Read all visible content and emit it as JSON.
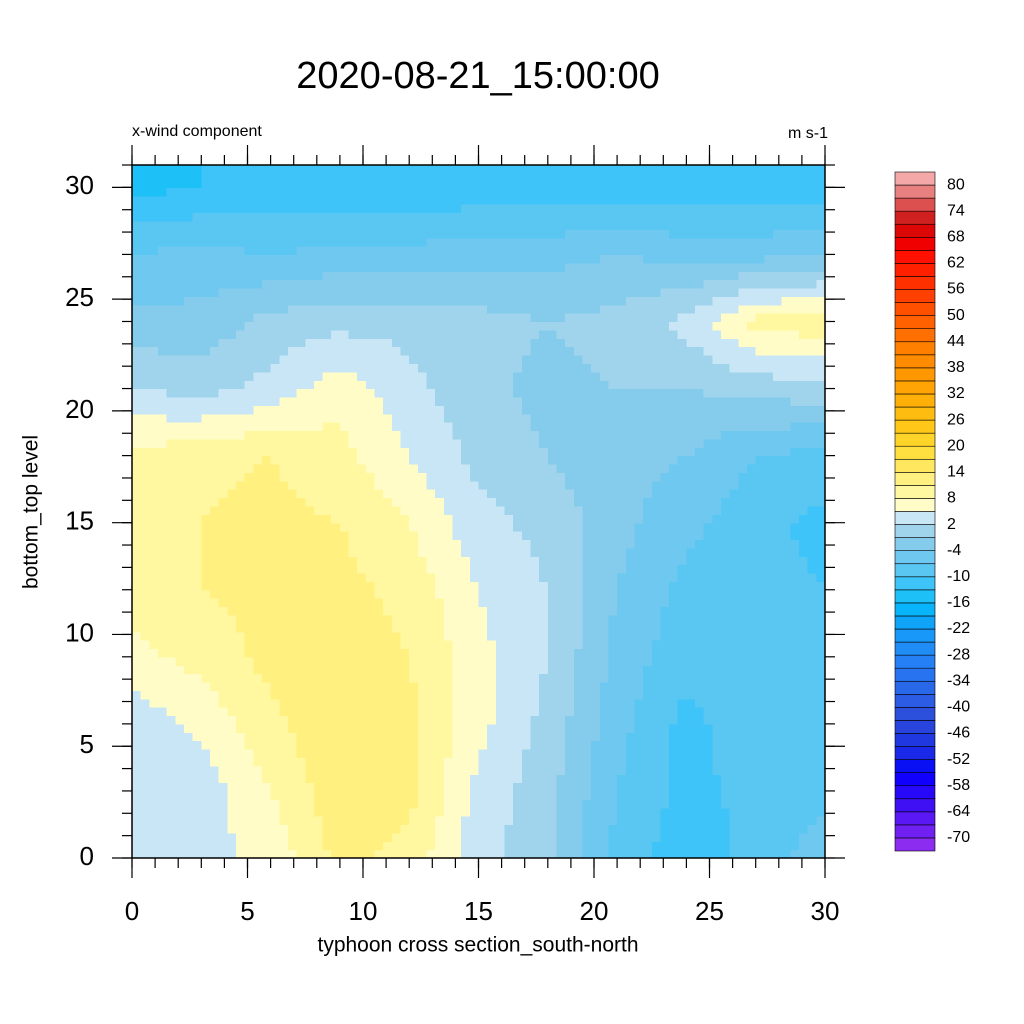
{
  "chart_data": {
    "type": "contour",
    "title": "2020-08-21_15:00:00",
    "subtitle_left": "x-wind component",
    "subtitle_right": "m s-1",
    "x_label": "typhoon cross section_south-north",
    "y_label": "bottom_top level",
    "x": [
      0,
      3,
      6,
      9,
      12,
      15,
      18,
      21,
      24,
      27,
      30
    ],
    "y": [
      0,
      3,
      6,
      9,
      12,
      15,
      18,
      21,
      24,
      27,
      30
    ],
    "z": [
      [
        3,
        4,
        6,
        12,
        10,
        3,
        0,
        -8,
        -12,
        -9,
        -5
      ],
      [
        2,
        3,
        8,
        13,
        12,
        4,
        0,
        -7,
        -11,
        -9,
        -8
      ],
      [
        3,
        6,
        10,
        14,
        12,
        6,
        1,
        -6,
        -11,
        -8,
        -8
      ],
      [
        7,
        9,
        12,
        13,
        11,
        6,
        2,
        -5,
        -9,
        -8,
        -8
      ],
      [
        9,
        11,
        12,
        12,
        10,
        5,
        2,
        -4,
        -8,
        -9,
        -10
      ],
      [
        10,
        11,
        12,
        11,
        8,
        3,
        1,
        -3,
        -6,
        -9,
        -11
      ],
      [
        9,
        10,
        11,
        9,
        5,
        1,
        -1,
        -3,
        -4,
        -7,
        -8
      ],
      [
        2,
        1,
        3,
        7,
        3,
        0,
        -2,
        -1,
        -1,
        0,
        1
      ],
      [
        -3,
        -3,
        0,
        1,
        1,
        0,
        -1,
        0,
        3,
        9,
        10
      ],
      [
        -7,
        -6,
        -7,
        -6,
        -6,
        -5,
        -5,
        -4,
        -5,
        -5,
        -4
      ],
      [
        -14,
        -13,
        -12,
        -12,
        -13,
        -12,
        -12,
        -12,
        -12,
        -12,
        -12
      ]
    ],
    "xlim": [
      0,
      30
    ],
    "ylim": [
      0,
      31
    ],
    "xticks": [
      0,
      5,
      10,
      15,
      20,
      25,
      30
    ],
    "yticks": [
      0,
      5,
      10,
      15,
      20,
      25,
      30
    ],
    "minor_step": 1,
    "levels": [
      -70,
      -67,
      -64,
      -61,
      -58,
      -55,
      -52,
      -49,
      -46,
      -43,
      -40,
      -37,
      -34,
      -31,
      -28,
      -25,
      -22,
      -19,
      -16,
      -13,
      -10,
      -7,
      -4,
      -1,
      2,
      5,
      8,
      11,
      14,
      17,
      20,
      23,
      26,
      29,
      32,
      35,
      38,
      41,
      44,
      47,
      50,
      53,
      56,
      59,
      62,
      65,
      68,
      71,
      74,
      77,
      80
    ],
    "colorbar_ticks": [
      -70,
      -64,
      -58,
      -52,
      -46,
      -40,
      -34,
      -28,
      -22,
      -16,
      -10,
      -4,
      2,
      8,
      14,
      20,
      26,
      32,
      38,
      44,
      50,
      56,
      62,
      68,
      74,
      80
    ],
    "colors": [
      "#8c2cf0",
      "#7020f0",
      "#5a18f4",
      "#4010f4",
      "#2808f8",
      "#1000fc",
      "#0a10f4",
      "#1a28e8",
      "#2038e0",
      "#2844dc",
      "#2c50dc",
      "#2c5ce4",
      "#2a68ea",
      "#2874f0",
      "#2480f4",
      "#208cf6",
      "#1898f8",
      "#10a4f8",
      "#08b4fa",
      "#1ec0f8",
      "#3ec4f8",
      "#5ac6f2",
      "#6ec8f0",
      "#84cbec",
      "#a0d4ec",
      "#c8e6f5",
      "#fffcc8",
      "#fff8a0",
      "#fff080",
      "#ffe860",
      "#ffe040",
      "#ffd428",
      "#ffc818",
      "#ffbc10",
      "#ffb008",
      "#ffa404",
      "#ff9800",
      "#ff8c00",
      "#ff8000",
      "#ff7000",
      "#ff6000",
      "#ff5000",
      "#ff4000",
      "#ff3000",
      "#ff2000",
      "#ff1000",
      "#f00000",
      "#dc0808",
      "#d02020",
      "#dc5050",
      "#e88080",
      "#f4a8a8"
    ]
  }
}
